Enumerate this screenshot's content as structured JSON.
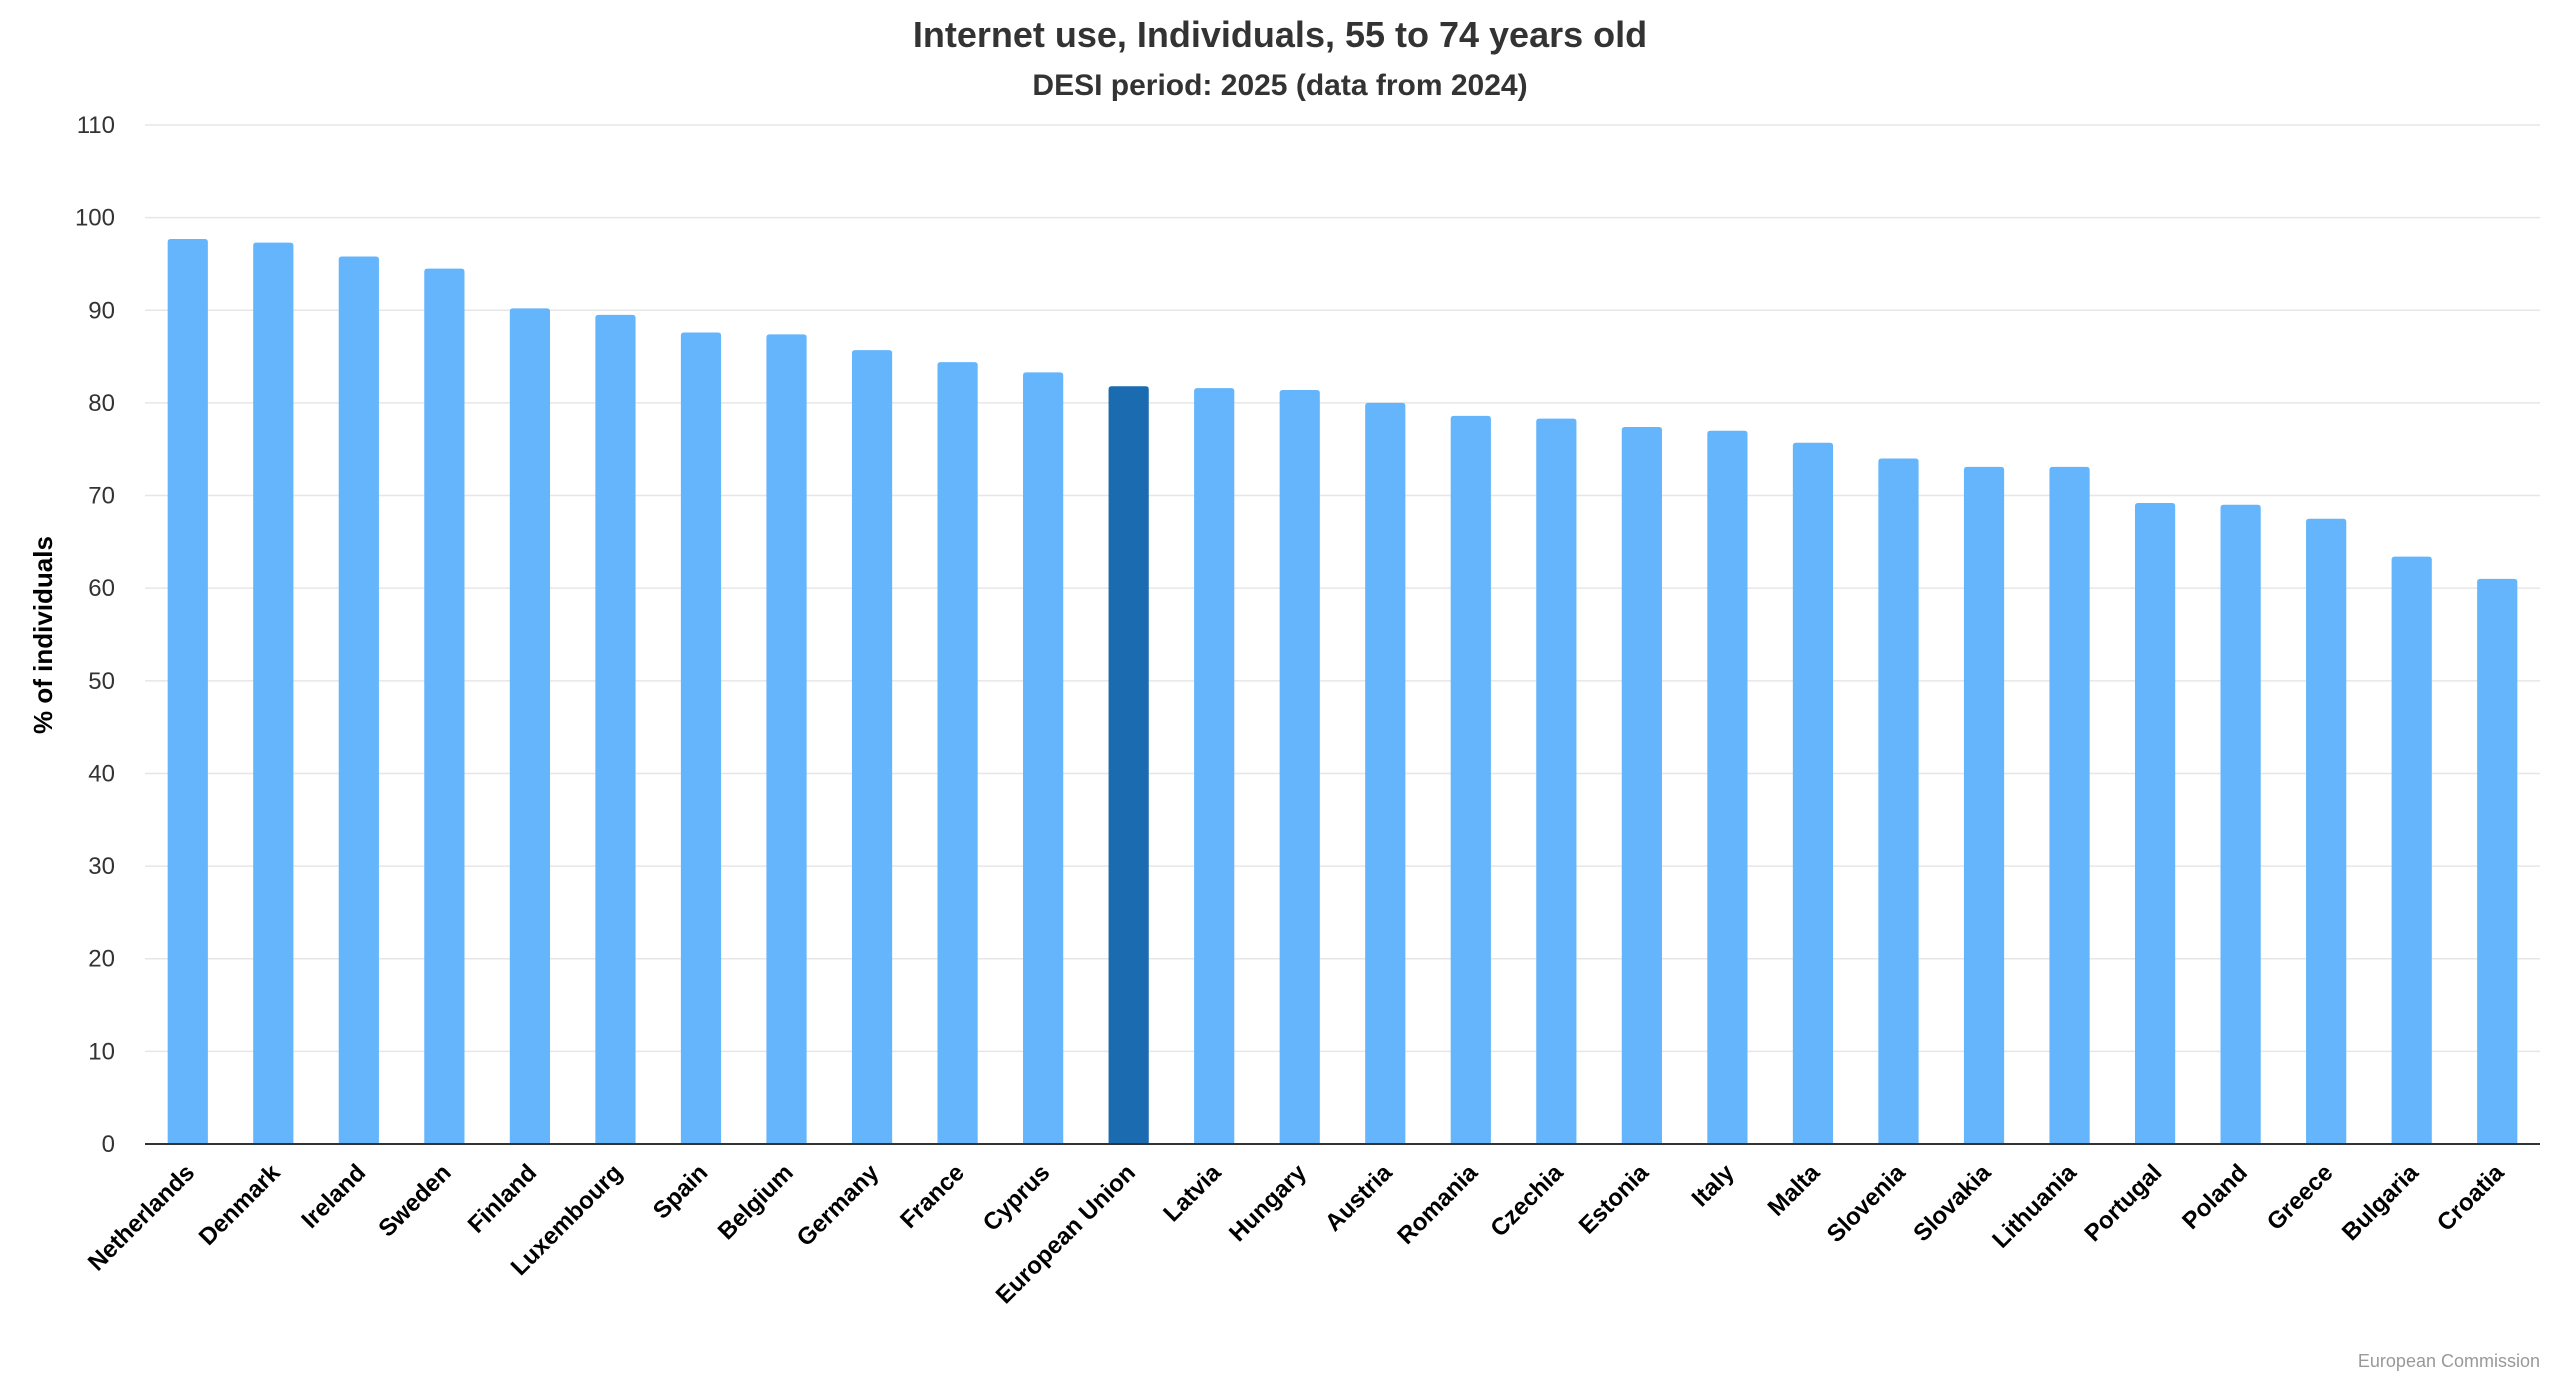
{
  "chart_data": {
    "type": "bar",
    "title": "Internet use, Individuals, 55 to 74 years old",
    "subtitle": "DESI period: 2025 (data from 2024)",
    "ylabel": "% of individuals",
    "xlabel": "",
    "ylim": [
      0,
      110
    ],
    "yticks": [
      0,
      10,
      20,
      30,
      40,
      50,
      60,
      70,
      80,
      90,
      100,
      110
    ],
    "grid": true,
    "categories": [
      "Netherlands",
      "Denmark",
      "Ireland",
      "Sweden",
      "Finland",
      "Luxembourg",
      "Spain",
      "Belgium",
      "Germany",
      "France",
      "Cyprus",
      "European Union",
      "Latvia",
      "Hungary",
      "Austria",
      "Romania",
      "Czechia",
      "Estonia",
      "Italy",
      "Malta",
      "Slovenia",
      "Slovakia",
      "Lithuania",
      "Portugal",
      "Poland",
      "Greece",
      "Bulgaria",
      "Croatia"
    ],
    "values": [
      97.7,
      97.3,
      95.8,
      94.5,
      90.2,
      89.5,
      87.6,
      87.4,
      85.7,
      84.4,
      83.3,
      81.8,
      81.6,
      81.4,
      80.0,
      78.6,
      78.3,
      77.4,
      77.0,
      75.7,
      74.0,
      73.1,
      73.1,
      69.2,
      69.0,
      67.5,
      63.4,
      61.0
    ],
    "highlight": "European Union",
    "colors": {
      "bar": "#64b5fc",
      "highlight": "#1a6bb0",
      "grid": "#e6e6e6",
      "axis": "#333333"
    }
  },
  "credit": "European Commission"
}
